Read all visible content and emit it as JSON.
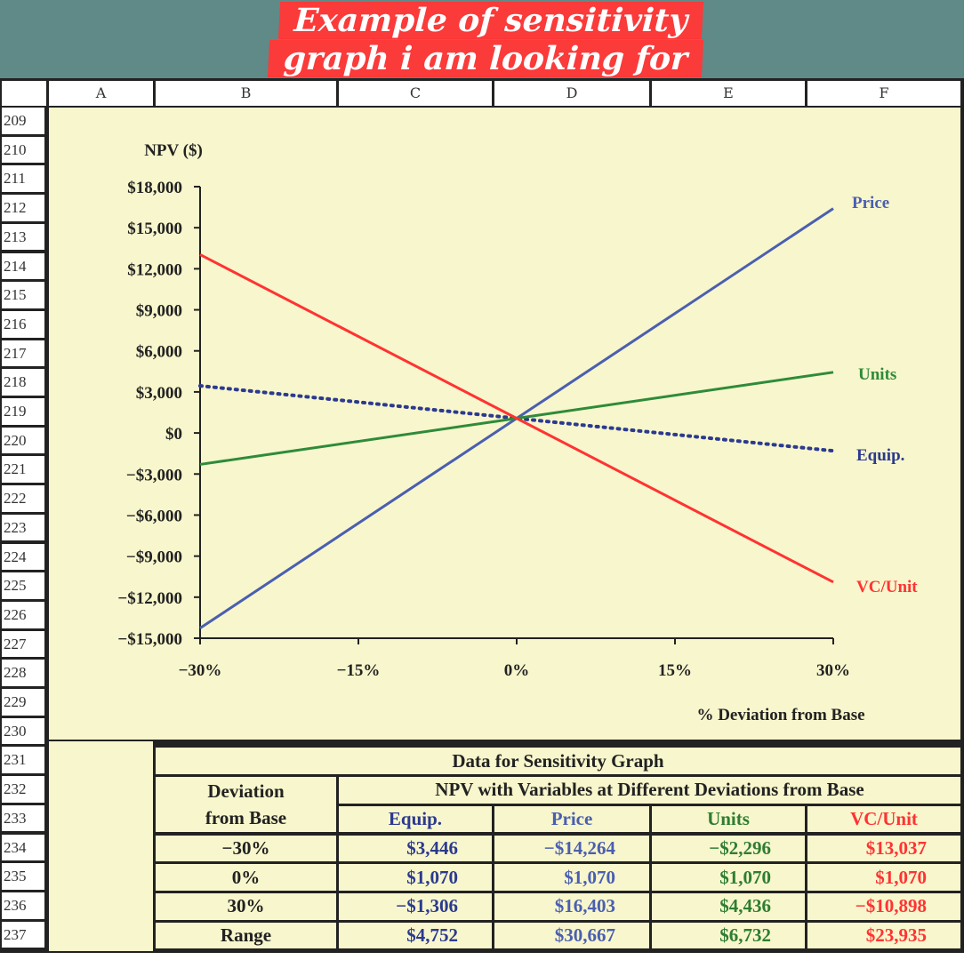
{
  "banner": {
    "line1": "Example of sensitivity",
    "line2": "graph i am looking for"
  },
  "columns": [
    "A",
    "B",
    "C",
    "D",
    "E",
    "F"
  ],
  "rows": [
    "209",
    "210",
    "211",
    "212",
    "213",
    "214",
    "215",
    "216",
    "217",
    "218",
    "219",
    "220",
    "221",
    "222",
    "223",
    "224",
    "225",
    "226",
    "227",
    "228",
    "229",
    "230",
    "231",
    "232",
    "233",
    "234",
    "235",
    "236",
    "237"
  ],
  "chart_data": {
    "type": "line",
    "ylabel": "NPV ($)",
    "xlabel": "% Deviation from Base",
    "x": [
      -30,
      0,
      30
    ],
    "x_tick_labels": [
      "−30%",
      "−15%",
      "0%",
      "15%",
      "30%"
    ],
    "x_ticks": [
      -30,
      -15,
      0,
      15,
      30
    ],
    "y_tick_labels": [
      "$18,000",
      "$15,000",
      "$12,000",
      "$9,000",
      "$6,000",
      "$3,000",
      "$0",
      "−$3,000",
      "−$6,000",
      "−$9,000",
      "−$12,000",
      "−$15,000"
    ],
    "y_ticks": [
      18000,
      15000,
      12000,
      9000,
      6000,
      3000,
      0,
      -3000,
      -6000,
      -9000,
      -12000,
      -15000
    ],
    "ylim": [
      -15000,
      18000
    ],
    "xlim": [
      -30,
      30
    ],
    "grid": false,
    "series": [
      {
        "name": "Equip.",
        "values": [
          3446,
          1070,
          -1306
        ],
        "color": "#2b3a8f",
        "style": "dotted"
      },
      {
        "name": "Price",
        "values": [
          -14264,
          1070,
          16403
        ],
        "color": "#4a5fb0",
        "style": "solid"
      },
      {
        "name": "Units",
        "values": [
          -2296,
          1070,
          4436
        ],
        "color": "#2e8b3a",
        "style": "solid"
      },
      {
        "name": "VC/Unit",
        "values": [
          13037,
          1070,
          -10898
        ],
        "color": "#ff3333",
        "style": "solid"
      }
    ]
  },
  "table": {
    "title": "Data for Sensitivity Graph",
    "dev_header1": "Deviation",
    "dev_header2": "from Base",
    "npv_header": "NPV with Variables at Different Deviations from Base",
    "col_headers": [
      "Equip.",
      "Price",
      "Units",
      "VC/Unit"
    ],
    "col_colors": [
      "#2b3a8f",
      "#4a5fb0",
      "#2e7d32",
      "#ff3333"
    ],
    "rows": [
      {
        "label": "−30%",
        "values": [
          "$3,446",
          "−$14,264",
          "−$2,296",
          "$13,037"
        ]
      },
      {
        "label": "0%",
        "values": [
          "$1,070",
          "$1,070",
          "$1,070",
          "$1,070"
        ]
      },
      {
        "label": "30%",
        "values": [
          "−$1,306",
          "$16,403",
          "$4,436",
          "−$10,898"
        ]
      },
      {
        "label": "Range",
        "values": [
          "$4,752",
          "$30,667",
          "$6,732",
          "$23,935"
        ]
      }
    ]
  }
}
